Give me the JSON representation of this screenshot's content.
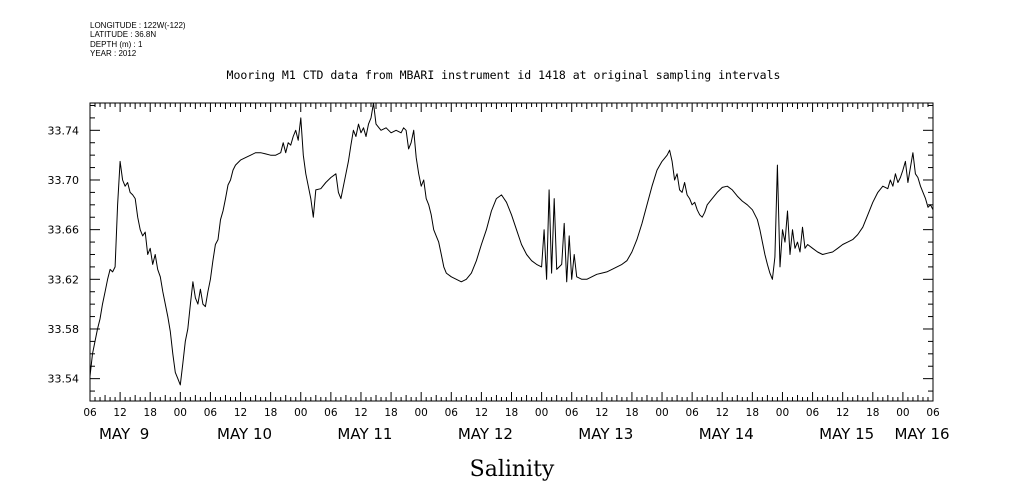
{
  "meta": {
    "longitude": "LONGITUDE : 122W(-122)",
    "latitude": "LATITUDE : 36.8N",
    "depth": "DEPTH (m) : 1",
    "year": "YEAR : 2012"
  },
  "chart_data": {
    "type": "line",
    "title": "Mooring M1 CTD data from MBARI instrument id 1418 at original sampling intervals",
    "xlabel": "",
    "ylabel": "",
    "variable_label": "Salinity",
    "x_unit": "hours since 2012-05-09 06:00",
    "xlim": [
      0,
      168
    ],
    "ylim": [
      33.522,
      33.762
    ],
    "y_ticks": [
      "33.54",
      "33.58",
      "33.62",
      "33.66",
      "33.70",
      "33.74"
    ],
    "x_tick_hours": [
      "06",
      "12",
      "18",
      "00",
      "06",
      "12",
      "18",
      "00",
      "06",
      "12",
      "18",
      "00",
      "06",
      "12",
      "18",
      "00",
      "06",
      "12",
      "18",
      "00",
      "06",
      "12",
      "18",
      "00",
      "06",
      "12",
      "18",
      "00",
      "06"
    ],
    "day_labels": [
      "MAY  9",
      "MAY 10",
      "MAY 11",
      "MAY 12",
      "MAY 13",
      "MAY 14",
      "MAY 15",
      "MAY 16"
    ],
    "grid": false,
    "series": [
      {
        "name": "",
        "points": [
          [
            0,
            33.542
          ],
          [
            0.5,
            33.56
          ],
          [
            1,
            33.57
          ],
          [
            1.5,
            33.58
          ],
          [
            2,
            33.588
          ],
          [
            2.5,
            33.6
          ],
          [
            3,
            33.61
          ],
          [
            3.5,
            33.62
          ],
          [
            4,
            33.628
          ],
          [
            4.5,
            33.626
          ],
          [
            5,
            33.63
          ],
          [
            5.5,
            33.68
          ],
          [
            6,
            33.715
          ],
          [
            6.5,
            33.7
          ],
          [
            7,
            33.695
          ],
          [
            7.5,
            33.698
          ],
          [
            8,
            33.69
          ],
          [
            8.5,
            33.688
          ],
          [
            9,
            33.685
          ],
          [
            9.5,
            33.67
          ],
          [
            10,
            33.66
          ],
          [
            10.5,
            33.655
          ],
          [
            11,
            33.658
          ],
          [
            11.5,
            33.64
          ],
          [
            12,
            33.645
          ],
          [
            12.5,
            33.632
          ],
          [
            13,
            33.64
          ],
          [
            13.5,
            33.628
          ],
          [
            14,
            33.622
          ],
          [
            14.5,
            33.61
          ],
          [
            15,
            33.6
          ],
          [
            15.5,
            33.59
          ],
          [
            16,
            33.578
          ],
          [
            16.5,
            33.56
          ],
          [
            17,
            33.545
          ],
          [
            17.5,
            33.54
          ],
          [
            18,
            33.535
          ],
          [
            18.5,
            33.552
          ],
          [
            19,
            33.57
          ],
          [
            19.5,
            33.58
          ],
          [
            20,
            33.6
          ],
          [
            20.5,
            33.618
          ],
          [
            21,
            33.605
          ],
          [
            21.5,
            33.6
          ],
          [
            22,
            33.612
          ],
          [
            22.5,
            33.6
          ],
          [
            23,
            33.598
          ],
          [
            23.5,
            33.61
          ],
          [
            24,
            33.62
          ],
          [
            24.5,
            33.635
          ],
          [
            25,
            33.648
          ],
          [
            25.5,
            33.652
          ],
          [
            26,
            33.668
          ],
          [
            26.5,
            33.675
          ],
          [
            27,
            33.685
          ],
          [
            27.5,
            33.696
          ],
          [
            28,
            33.7
          ],
          [
            28.5,
            33.708
          ],
          [
            29,
            33.712
          ],
          [
            30,
            33.716
          ],
          [
            31,
            33.718
          ],
          [
            32,
            33.72
          ],
          [
            33,
            33.722
          ],
          [
            34,
            33.722
          ],
          [
            35,
            33.721
          ],
          [
            36,
            33.72
          ],
          [
            37,
            33.72
          ],
          [
            38,
            33.722
          ],
          [
            38.5,
            33.73
          ],
          [
            39,
            33.722
          ],
          [
            39.5,
            33.73
          ],
          [
            40,
            33.728
          ],
          [
            40.5,
            33.735
          ],
          [
            41,
            33.74
          ],
          [
            41.5,
            33.732
          ],
          [
            42,
            33.75
          ],
          [
            42.5,
            33.72
          ],
          [
            43,
            33.705
          ],
          [
            43.5,
            33.695
          ],
          [
            44,
            33.685
          ],
          [
            44.5,
            33.67
          ],
          [
            45,
            33.692
          ],
          [
            46,
            33.693
          ],
          [
            47,
            33.698
          ],
          [
            48,
            33.702
          ],
          [
            49,
            33.705
          ],
          [
            49.5,
            33.69
          ],
          [
            50,
            33.685
          ],
          [
            50.5,
            33.695
          ],
          [
            51,
            33.705
          ],
          [
            51.5,
            33.715
          ],
          [
            52,
            33.728
          ],
          [
            52.5,
            33.74
          ],
          [
            53,
            33.735
          ],
          [
            53.5,
            33.745
          ],
          [
            54,
            33.738
          ],
          [
            54.5,
            33.742
          ],
          [
            55,
            33.735
          ],
          [
            55.5,
            33.745
          ],
          [
            56,
            33.75
          ],
          [
            56.5,
            33.762
          ],
          [
            57,
            33.745
          ],
          [
            58,
            33.74
          ],
          [
            59,
            33.742
          ],
          [
            60,
            33.738
          ],
          [
            61,
            33.74
          ],
          [
            62,
            33.738
          ],
          [
            62.5,
            33.742
          ],
          [
            63,
            33.74
          ],
          [
            63.5,
            33.725
          ],
          [
            64,
            33.73
          ],
          [
            64.5,
            33.74
          ],
          [
            65,
            33.718
          ],
          [
            65.5,
            33.705
          ],
          [
            66,
            33.695
          ],
          [
            66.5,
            33.7
          ],
          [
            67,
            33.685
          ],
          [
            67.5,
            33.68
          ],
          [
            68,
            33.672
          ],
          [
            68.5,
            33.66
          ],
          [
            69,
            33.655
          ],
          [
            69.5,
            33.65
          ],
          [
            70,
            33.64
          ],
          [
            70.5,
            33.63
          ],
          [
            71,
            33.625
          ],
          [
            72,
            33.622
          ],
          [
            73,
            33.62
          ],
          [
            74,
            33.618
          ],
          [
            75,
            33.62
          ],
          [
            76,
            33.625
          ],
          [
            77,
            33.635
          ],
          [
            78,
            33.648
          ],
          [
            79,
            33.66
          ],
          [
            80,
            33.675
          ],
          [
            81,
            33.685
          ],
          [
            82,
            33.688
          ],
          [
            83,
            33.682
          ],
          [
            84,
            33.672
          ],
          [
            85,
            33.66
          ],
          [
            86,
            33.648
          ],
          [
            87,
            33.64
          ],
          [
            88,
            33.635
          ],
          [
            89,
            33.632
          ],
          [
            90,
            33.63
          ],
          [
            90.5,
            33.66
          ],
          [
            91,
            33.62
          ],
          [
            91.5,
            33.692
          ],
          [
            92,
            33.625
          ],
          [
            92.5,
            33.685
          ],
          [
            93,
            33.628
          ],
          [
            94,
            33.632
          ],
          [
            94.5,
            33.665
          ],
          [
            95,
            33.618
          ],
          [
            95.5,
            33.655
          ],
          [
            96,
            33.62
          ],
          [
            96.5,
            33.64
          ],
          [
            97,
            33.622
          ],
          [
            98,
            33.62
          ],
          [
            99,
            33.62
          ],
          [
            100,
            33.622
          ],
          [
            101,
            33.624
          ],
          [
            102,
            33.625
          ],
          [
            103,
            33.626
          ],
          [
            104,
            33.628
          ],
          [
            105,
            33.63
          ],
          [
            106,
            33.632
          ],
          [
            107,
            33.635
          ],
          [
            108,
            33.642
          ],
          [
            109,
            33.652
          ],
          [
            110,
            33.665
          ],
          [
            111,
            33.68
          ],
          [
            112,
            33.695
          ],
          [
            113,
            33.708
          ],
          [
            114,
            33.715
          ],
          [
            115,
            33.72
          ],
          [
            115.5,
            33.724
          ],
          [
            116,
            33.715
          ],
          [
            116.5,
            33.7
          ],
          [
            117,
            33.705
          ],
          [
            117.5,
            33.692
          ],
          [
            118,
            33.69
          ],
          [
            118.5,
            33.698
          ],
          [
            119,
            33.688
          ],
          [
            119.5,
            33.685
          ],
          [
            120,
            33.68
          ],
          [
            120.5,
            33.682
          ],
          [
            121,
            33.676
          ],
          [
            121.5,
            33.672
          ],
          [
            122,
            33.67
          ],
          [
            122.5,
            33.674
          ],
          [
            123,
            33.68
          ],
          [
            124,
            33.685
          ],
          [
            125,
            33.69
          ],
          [
            126,
            33.694
          ],
          [
            127,
            33.695
          ],
          [
            128,
            33.692
          ],
          [
            129,
            33.687
          ],
          [
            130,
            33.683
          ],
          [
            131,
            33.68
          ],
          [
            132,
            33.676
          ],
          [
            133,
            33.668
          ],
          [
            133.5,
            33.66
          ],
          [
            134,
            33.65
          ],
          [
            134.5,
            33.64
          ],
          [
            135,
            33.632
          ],
          [
            135.5,
            33.625
          ],
          [
            136,
            33.62
          ],
          [
            136.5,
            33.638
          ],
          [
            137,
            33.712
          ],
          [
            137.5,
            33.63
          ],
          [
            138,
            33.66
          ],
          [
            138.5,
            33.65
          ],
          [
            139,
            33.675
          ],
          [
            139.5,
            33.64
          ],
          [
            140,
            33.66
          ],
          [
            140.5,
            33.645
          ],
          [
            141,
            33.65
          ],
          [
            141.5,
            33.642
          ],
          [
            142,
            33.662
          ],
          [
            142.5,
            33.645
          ],
          [
            143,
            33.648
          ],
          [
            144,
            33.645
          ],
          [
            145,
            33.642
          ],
          [
            146,
            33.64
          ],
          [
            147,
            33.641
          ],
          [
            148,
            33.642
          ],
          [
            149,
            33.645
          ],
          [
            150,
            33.648
          ],
          [
            151,
            33.65
          ],
          [
            152,
            33.652
          ],
          [
            153,
            33.656
          ],
          [
            154,
            33.662
          ],
          [
            155,
            33.672
          ],
          [
            156,
            33.682
          ],
          [
            157,
            33.69
          ],
          [
            158,
            33.695
          ],
          [
            159,
            33.693
          ],
          [
            159.5,
            33.7
          ],
          [
            160,
            33.695
          ],
          [
            160.5,
            33.705
          ],
          [
            161,
            33.698
          ],
          [
            161.5,
            33.702
          ],
          [
            162,
            33.708
          ],
          [
            162.5,
            33.715
          ],
          [
            163,
            33.698
          ],
          [
            163.5,
            33.71
          ],
          [
            164,
            33.722
          ],
          [
            164.5,
            33.705
          ],
          [
            165,
            33.702
          ],
          [
            165.5,
            33.695
          ],
          [
            166,
            33.69
          ],
          [
            166.5,
            33.685
          ],
          [
            167,
            33.678
          ],
          [
            167.5,
            33.68
          ],
          [
            168,
            33.676
          ]
        ]
      }
    ]
  }
}
